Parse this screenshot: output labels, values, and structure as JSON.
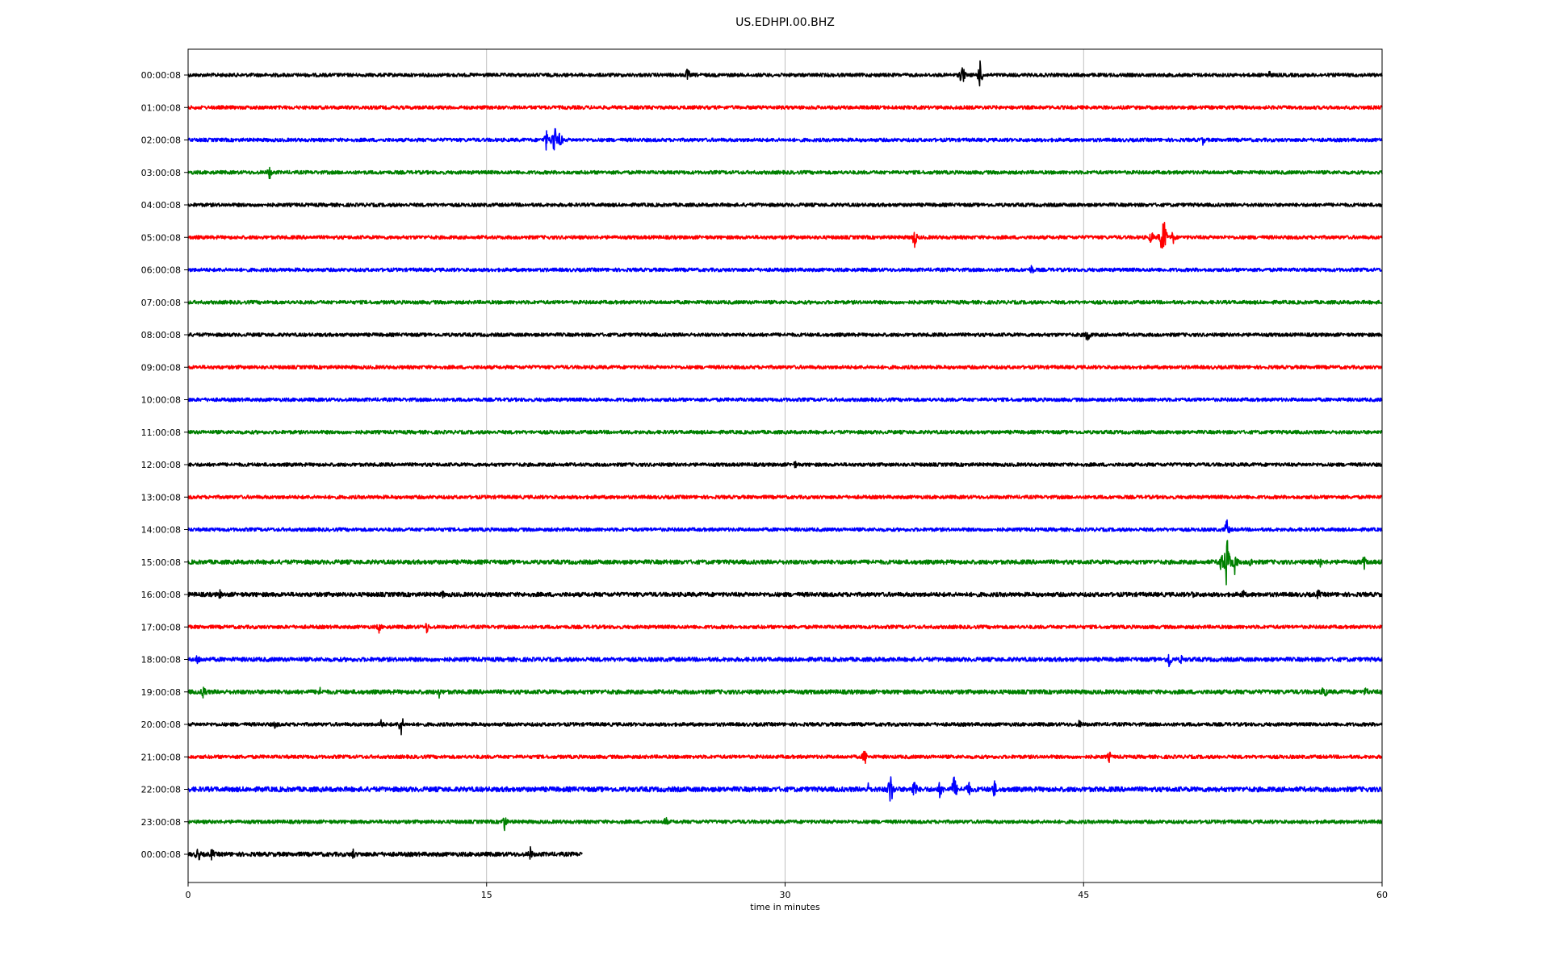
{
  "title": "US.EDHPI.00.BHZ",
  "chart_data": {
    "type": "line",
    "title": "US.EDHPI.00.BHZ",
    "xlabel": "time in minutes",
    "ylabel": "",
    "xlim": [
      0,
      60
    ],
    "x_ticks": [
      0,
      15,
      30,
      45,
      60
    ],
    "x_tick_labels": [
      "0",
      "15",
      "30",
      "45",
      "60"
    ],
    "grid": "vertical lines at 15, 30, 45",
    "colors": [
      "#000000",
      "#ff0000",
      "#0000ff",
      "#008000"
    ],
    "traces": [
      {
        "label": "00:00:08",
        "color": "#000000",
        "end_minute": 60,
        "noise": 1.0,
        "events": [
          {
            "t": 25.1,
            "amp": 10
          },
          {
            "t": 38.9,
            "amp": 16
          },
          {
            "t": 39.8,
            "amp": 18
          },
          {
            "t": 54.3,
            "amp": 8
          }
        ]
      },
      {
        "label": "01:00:08",
        "color": "#ff0000",
        "end_minute": 60,
        "noise": 1.0,
        "events": []
      },
      {
        "label": "02:00:08",
        "color": "#0000ff",
        "end_minute": 60,
        "noise": 1.0,
        "events": [
          {
            "t": 18.0,
            "amp": 14
          },
          {
            "t": 18.4,
            "amp": 24
          },
          {
            "t": 18.7,
            "amp": 12
          },
          {
            "t": 51.0,
            "amp": 7
          }
        ]
      },
      {
        "label": "03:00:08",
        "color": "#008000",
        "end_minute": 60,
        "noise": 1.0,
        "events": [
          {
            "t": 4.1,
            "amp": 10
          }
        ]
      },
      {
        "label": "04:00:08",
        "color": "#000000",
        "end_minute": 60,
        "noise": 1.0,
        "events": []
      },
      {
        "label": "05:00:08",
        "color": "#ff0000",
        "end_minute": 60,
        "noise": 1.0,
        "events": [
          {
            "t": 36.5,
            "amp": 14
          },
          {
            "t": 48.4,
            "amp": 10
          },
          {
            "t": 49.0,
            "amp": 36
          },
          {
            "t": 49.5,
            "amp": 10
          }
        ]
      },
      {
        "label": "06:00:08",
        "color": "#0000ff",
        "end_minute": 60,
        "noise": 1.0,
        "events": [
          {
            "t": 42.4,
            "amp": 8
          }
        ]
      },
      {
        "label": "07:00:08",
        "color": "#008000",
        "end_minute": 60,
        "noise": 1.0,
        "events": []
      },
      {
        "label": "08:00:08",
        "color": "#000000",
        "end_minute": 60,
        "noise": 1.0,
        "events": [
          {
            "t": 45.2,
            "amp": 13
          }
        ]
      },
      {
        "label": "09:00:08",
        "color": "#ff0000",
        "end_minute": 60,
        "noise": 1.0,
        "events": []
      },
      {
        "label": "10:00:08",
        "color": "#0000ff",
        "end_minute": 60,
        "noise": 1.0,
        "events": []
      },
      {
        "label": "11:00:08",
        "color": "#008000",
        "end_minute": 60,
        "noise": 1.0,
        "events": []
      },
      {
        "label": "12:00:08",
        "color": "#000000",
        "end_minute": 60,
        "noise": 1.0,
        "events": [
          {
            "t": 30.5,
            "amp": 6
          }
        ]
      },
      {
        "label": "13:00:08",
        "color": "#ff0000",
        "end_minute": 60,
        "noise": 1.0,
        "events": []
      },
      {
        "label": "14:00:08",
        "color": "#0000ff",
        "end_minute": 60,
        "noise": 1.0,
        "events": [
          {
            "t": 52.2,
            "amp": 14
          }
        ]
      },
      {
        "label": "15:00:08",
        "color": "#008000",
        "end_minute": 60,
        "noise": 1.2,
        "events": [
          {
            "t": 51.9,
            "amp": 16
          },
          {
            "t": 52.2,
            "amp": 40
          },
          {
            "t": 52.6,
            "amp": 16
          },
          {
            "t": 53.4,
            "amp": 8
          },
          {
            "t": 56.9,
            "amp": 8
          },
          {
            "t": 59.1,
            "amp": 10
          }
        ]
      },
      {
        "label": "16:00:08",
        "color": "#000000",
        "end_minute": 60,
        "noise": 1.2,
        "events": [
          {
            "t": 1.6,
            "amp": 7
          },
          {
            "t": 12.8,
            "amp": 6
          },
          {
            "t": 50.5,
            "amp": 7
          },
          {
            "t": 53.0,
            "amp": 8
          },
          {
            "t": 56.8,
            "amp": 8
          }
        ]
      },
      {
        "label": "17:00:08",
        "color": "#ff0000",
        "end_minute": 60,
        "noise": 1.0,
        "events": [
          {
            "t": 9.6,
            "amp": 8
          },
          {
            "t": 12.0,
            "amp": 9
          }
        ]
      },
      {
        "label": "18:00:08",
        "color": "#0000ff",
        "end_minute": 60,
        "noise": 1.2,
        "events": [
          {
            "t": 0.5,
            "amp": 9
          },
          {
            "t": 49.3,
            "amp": 14
          },
          {
            "t": 49.9,
            "amp": 7
          }
        ]
      },
      {
        "label": "19:00:08",
        "color": "#008000",
        "end_minute": 60,
        "noise": 1.2,
        "events": [
          {
            "t": 0.8,
            "amp": 12
          },
          {
            "t": 6.6,
            "amp": 8
          },
          {
            "t": 12.6,
            "amp": 9
          },
          {
            "t": 57.1,
            "amp": 12
          },
          {
            "t": 59.2,
            "amp": 8
          }
        ]
      },
      {
        "label": "20:00:08",
        "color": "#000000",
        "end_minute": 60,
        "noise": 1.0,
        "events": [
          {
            "t": 4.4,
            "amp": 7
          },
          {
            "t": 9.7,
            "amp": 8
          },
          {
            "t": 10.7,
            "amp": 16
          },
          {
            "t": 44.8,
            "amp": 7
          }
        ]
      },
      {
        "label": "21:00:08",
        "color": "#ff0000",
        "end_minute": 60,
        "noise": 1.0,
        "events": [
          {
            "t": 34.0,
            "amp": 12
          },
          {
            "t": 46.3,
            "amp": 8
          }
        ]
      },
      {
        "label": "22:00:08",
        "color": "#0000ff",
        "end_minute": 60,
        "noise": 1.4,
        "events": [
          {
            "t": 34.2,
            "amp": 10
          },
          {
            "t": 35.3,
            "amp": 24
          },
          {
            "t": 36.5,
            "amp": 16
          },
          {
            "t": 37.8,
            "amp": 14
          },
          {
            "t": 38.5,
            "amp": 20
          },
          {
            "t": 39.2,
            "amp": 14
          },
          {
            "t": 40.5,
            "amp": 14
          }
        ]
      },
      {
        "label": "23:00:08",
        "color": "#008000",
        "end_minute": 60,
        "noise": 1.0,
        "events": [
          {
            "t": 15.9,
            "amp": 12
          },
          {
            "t": 24.0,
            "amp": 8
          }
        ]
      },
      {
        "label": "00:00:08",
        "color": "#000000",
        "end_minute": 19.8,
        "noise": 1.2,
        "events": [
          {
            "t": 0.5,
            "amp": 12
          },
          {
            "t": 1.2,
            "amp": 9
          },
          {
            "t": 8.3,
            "amp": 8
          },
          {
            "t": 17.2,
            "amp": 10
          }
        ]
      }
    ]
  }
}
